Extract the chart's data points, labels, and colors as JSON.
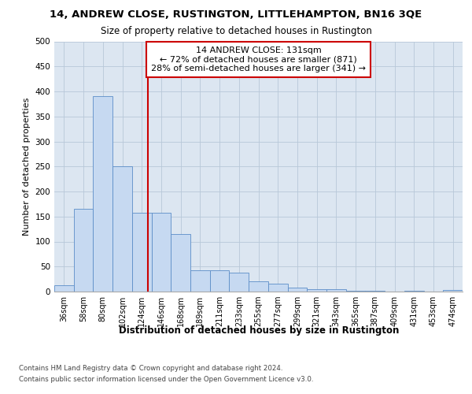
{
  "title1": "14, ANDREW CLOSE, RUSTINGTON, LITTLEHAMPTON, BN16 3QE",
  "title2": "Size of property relative to detached houses in Rustington",
  "xlabel": "Distribution of detached houses by size in Rustington",
  "ylabel": "Number of detached properties",
  "categories": [
    "36sqm",
    "58sqm",
    "80sqm",
    "102sqm",
    "124sqm",
    "146sqm",
    "168sqm",
    "189sqm",
    "211sqm",
    "233sqm",
    "255sqm",
    "277sqm",
    "299sqm",
    "321sqm",
    "343sqm",
    "365sqm",
    "387sqm",
    "409sqm",
    "431sqm",
    "453sqm",
    "474sqm"
  ],
  "values": [
    13,
    165,
    390,
    250,
    158,
    158,
    115,
    43,
    43,
    38,
    20,
    15,
    8,
    5,
    4,
    2,
    1,
    0,
    1,
    0,
    3
  ],
  "bar_color": "#c6d9f1",
  "bar_edge_color": "#5b8dc8",
  "grid_color": "#b8c8d8",
  "background_color": "#dce6f1",
  "annotation_text": "14 ANDREW CLOSE: 131sqm\n← 72% of detached houses are smaller (871)\n28% of semi-detached houses are larger (341) →",
  "vline_x_index": 4.3,
  "vline_color": "#cc0000",
  "annotation_box_color": "#ffffff",
  "annotation_box_edge": "#cc0000",
  "footer1": "Contains HM Land Registry data © Crown copyright and database right 2024.",
  "footer2": "Contains public sector information licensed under the Open Government Licence v3.0.",
  "ylim": [
    0,
    500
  ],
  "yticks": [
    0,
    50,
    100,
    150,
    200,
    250,
    300,
    350,
    400,
    450,
    500
  ]
}
